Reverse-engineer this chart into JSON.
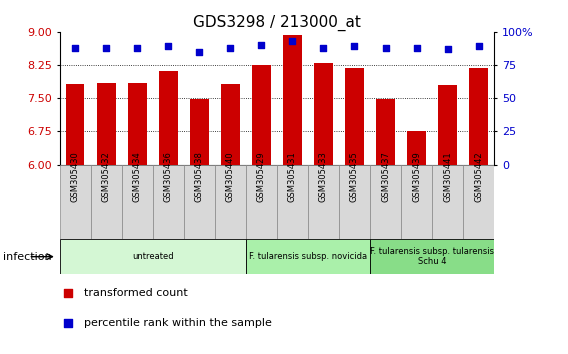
{
  "title": "GDS3298 / 213000_at",
  "samples": [
    "GSM305430",
    "GSM305432",
    "GSM305434",
    "GSM305436",
    "GSM305438",
    "GSM305440",
    "GSM305429",
    "GSM305431",
    "GSM305433",
    "GSM305435",
    "GSM305437",
    "GSM305439",
    "GSM305441",
    "GSM305442"
  ],
  "transformed_counts": [
    7.83,
    7.85,
    7.84,
    8.12,
    7.48,
    7.82,
    8.25,
    8.93,
    8.29,
    8.18,
    7.48,
    6.75,
    7.79,
    8.18
  ],
  "percentile_ranks": [
    88,
    88,
    88,
    89,
    85,
    88,
    90,
    93,
    88,
    89,
    88,
    88,
    87,
    89
  ],
  "ylim_left": [
    6,
    9
  ],
  "ylim_right": [
    0,
    100
  ],
  "yticks_left": [
    6,
    6.75,
    7.5,
    8.25,
    9
  ],
  "yticks_right": [
    0,
    25,
    50,
    75,
    100
  ],
  "bar_color": "#cc0000",
  "dot_color": "#0000cc",
  "bar_width": 0.6,
  "groups": [
    {
      "label": "untreated",
      "start": 0,
      "end": 6,
      "color": "#d4f7d4"
    },
    {
      "label": "F. tularensis subsp. novicida",
      "start": 6,
      "end": 10,
      "color": "#aaf0aa"
    },
    {
      "label": "F. tularensis subsp. tularensis\nSchu 4",
      "start": 10,
      "end": 14,
      "color": "#88dd88"
    }
  ],
  "infection_label": "infection",
  "legend_items": [
    {
      "color": "#cc0000",
      "label": "transformed count"
    },
    {
      "color": "#0000cc",
      "label": "percentile rank within the sample"
    }
  ],
  "grid_color": "black",
  "sample_bg_color": "#d8d8d8",
  "sample_border_color": "#888888"
}
